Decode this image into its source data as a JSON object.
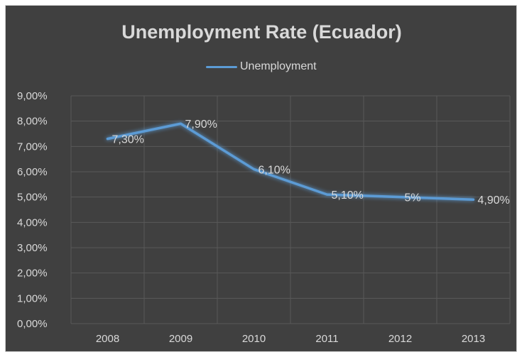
{
  "chart_data": {
    "type": "line",
    "title": "Unemployment Rate (Ecuador)",
    "xlabel": "",
    "ylabel": "",
    "categories": [
      "2008",
      "2009",
      "2010",
      "2011",
      "2012",
      "2013"
    ],
    "series": [
      {
        "name": "Unemployment",
        "values": [
          7.3,
          7.9,
          6.1,
          5.1,
          5.0,
          4.9
        ],
        "data_labels": [
          "7,30%",
          "7,90%",
          "6,10%",
          "5,10%",
          "5%",
          "4,90%"
        ],
        "color": "#5b9bd5"
      }
    ],
    "ylim": [
      0,
      9
    ],
    "yticks": [
      0,
      1,
      2,
      3,
      4,
      5,
      6,
      7,
      8,
      9
    ],
    "ytick_labels": [
      "0,00%",
      "1,00%",
      "2,00%",
      "3,00%",
      "4,00%",
      "5,00%",
      "6,00%",
      "7,00%",
      "8,00%",
      "9,00%"
    ],
    "grid": true,
    "legend_position": "top-center",
    "background_color": "#404040",
    "text_color": "#d9d9d9",
    "grid_color": "#595959"
  }
}
